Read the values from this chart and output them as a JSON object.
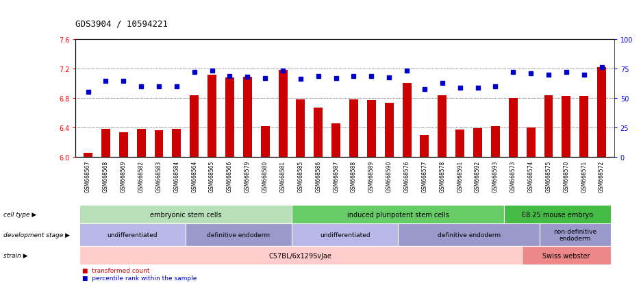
{
  "title": "GDS3904 / 10594221",
  "samples": [
    "GSM668567",
    "GSM668568",
    "GSM668569",
    "GSM668582",
    "GSM668583",
    "GSM668584",
    "GSM668564",
    "GSM668565",
    "GSM668566",
    "GSM668579",
    "GSM668580",
    "GSM668581",
    "GSM668585",
    "GSM668586",
    "GSM668587",
    "GSM668588",
    "GSM668589",
    "GSM668590",
    "GSM668576",
    "GSM668577",
    "GSM668578",
    "GSM668591",
    "GSM668592",
    "GSM668593",
    "GSM668573",
    "GSM668574",
    "GSM668575",
    "GSM668570",
    "GSM668571",
    "GSM668572"
  ],
  "bar_values": [
    6.05,
    6.38,
    6.33,
    6.38,
    6.36,
    6.38,
    6.84,
    7.12,
    7.08,
    7.09,
    6.42,
    7.18,
    6.78,
    6.67,
    6.45,
    6.78,
    6.77,
    6.73,
    7.0,
    6.3,
    6.84,
    6.37,
    6.39,
    6.42,
    6.8,
    6.4,
    6.84,
    6.83,
    6.83,
    7.22
  ],
  "dot_values": [
    6.88,
    7.03,
    7.03,
    6.96,
    6.96,
    6.96,
    7.15,
    7.17,
    7.1,
    7.09,
    7.07,
    7.17,
    7.06,
    7.1,
    7.07,
    7.1,
    7.1,
    7.08,
    7.17,
    6.92,
    7.0,
    6.94,
    6.94,
    6.96,
    7.15,
    7.13,
    7.12,
    7.15,
    7.12,
    7.22
  ],
  "ylim": [
    6.0,
    7.6
  ],
  "yticks": [
    6.0,
    6.4,
    6.8,
    7.2,
    7.6
  ],
  "right_yticks": [
    0,
    25,
    50,
    75,
    100
  ],
  "bar_color": "#cc0000",
  "dot_color": "#0000cc",
  "cell_type_groups": [
    {
      "label": "embryonic stem cells",
      "start": 0,
      "end": 11,
      "color": "#b8e0b8"
    },
    {
      "label": "induced pluripotent stem cells",
      "start": 12,
      "end": 23,
      "color": "#66cc66"
    },
    {
      "label": "E8.25 mouse embryo",
      "start": 24,
      "end": 29,
      "color": "#44bb44"
    }
  ],
  "dev_stage_groups": [
    {
      "label": "undifferentiated",
      "start": 0,
      "end": 5,
      "color": "#b8b8e8"
    },
    {
      "label": "definitive endoderm",
      "start": 6,
      "end": 11,
      "color": "#9999cc"
    },
    {
      "label": "undifferentiated",
      "start": 12,
      "end": 17,
      "color": "#b8b8e8"
    },
    {
      "label": "definitive endoderm",
      "start": 18,
      "end": 25,
      "color": "#9999cc"
    },
    {
      "label": "non-definitive\nendoderm",
      "start": 26,
      "end": 29,
      "color": "#9999cc"
    }
  ],
  "strain_groups": [
    {
      "label": "C57BL/6x129SvJae",
      "start": 0,
      "end": 24,
      "color": "#ffcccc"
    },
    {
      "label": "Swiss webster",
      "start": 25,
      "end": 29,
      "color": "#ee8888"
    }
  ],
  "legend_items": [
    {
      "label": "transformed count",
      "color": "#cc0000"
    },
    {
      "label": "percentile rank within the sample",
      "color": "#0000cc"
    }
  ]
}
